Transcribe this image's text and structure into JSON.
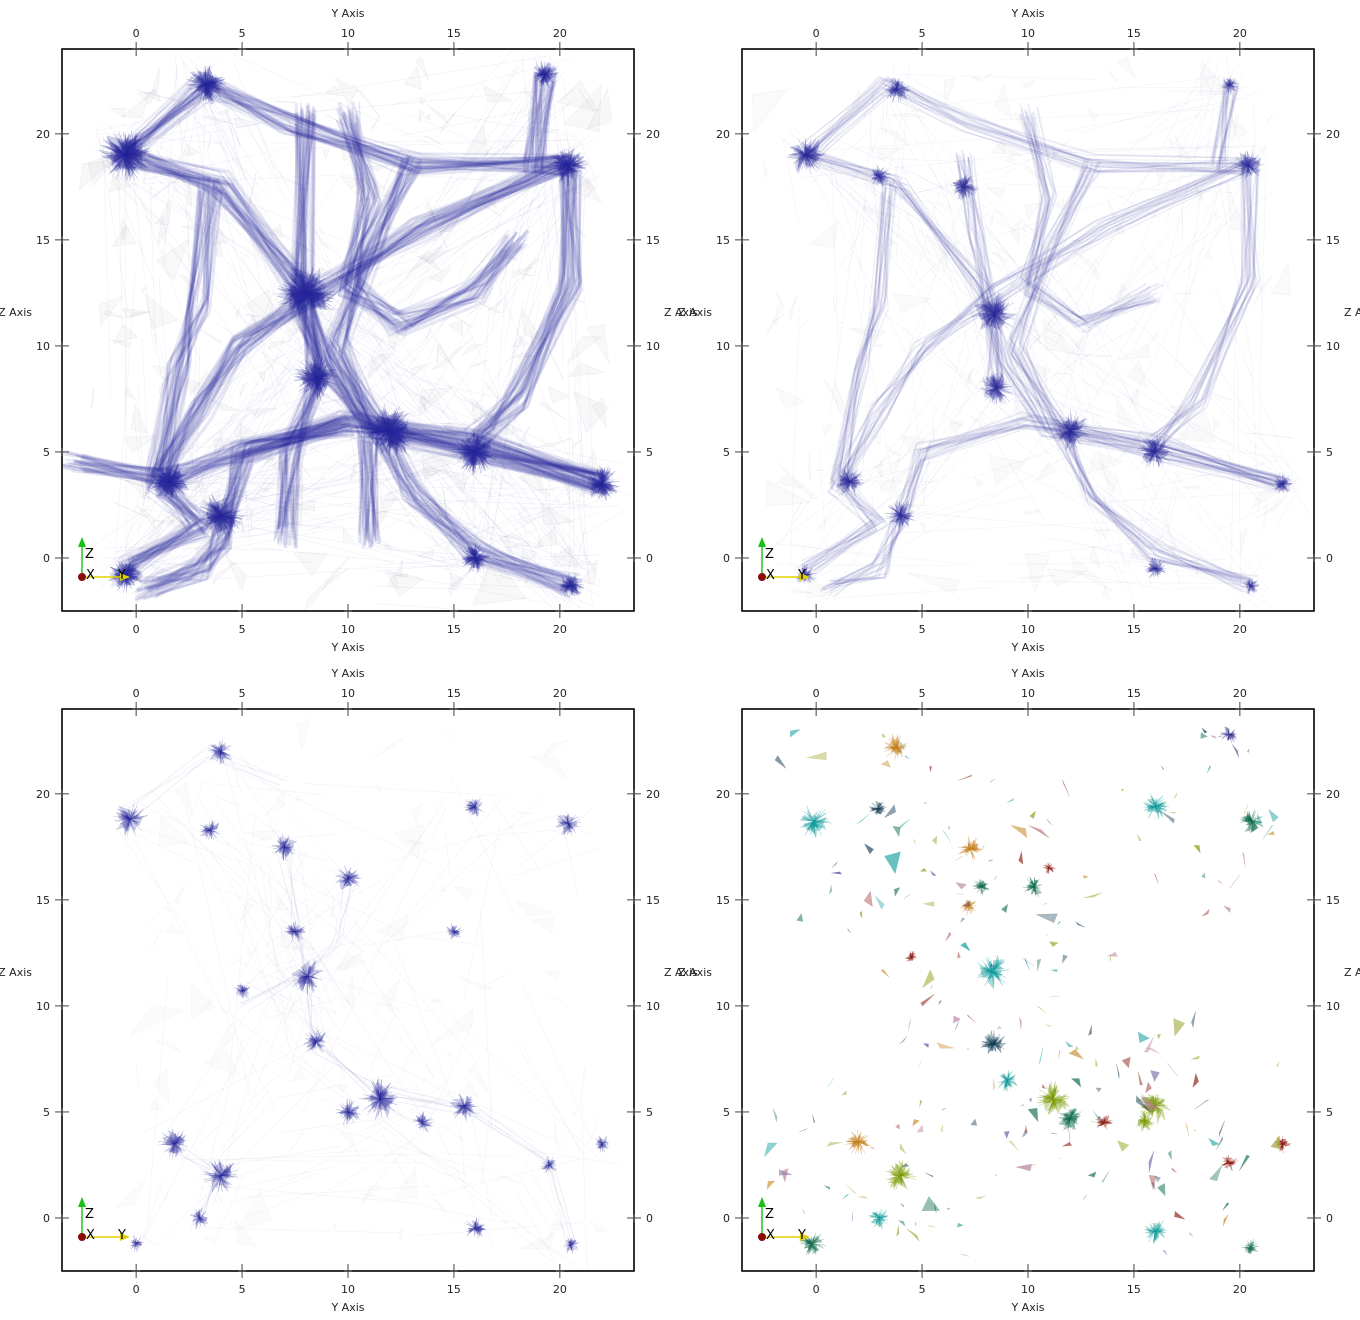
{
  "chart_data": [
    {
      "type": "scatter",
      "panel": "top-left",
      "title": "",
      "xlabel": "Y Axis",
      "ylabel": "Z Axis",
      "xlim": [
        -3.5,
        23.5
      ],
      "ylim": [
        -2.5,
        24
      ],
      "xticks": [
        "0",
        "5",
        "10",
        "15",
        "20"
      ],
      "yticks": [
        "0",
        "5",
        "10",
        "15",
        "20"
      ],
      "style": "dense",
      "color": "#2a2a9c",
      "filaments": [
        [
          [
            -0.5,
            19
          ],
          [
            3.3,
            22.3
          ],
          [
            7,
            20.5
          ],
          [
            13,
            18.6
          ],
          [
            20.4,
            18.5
          ]
        ],
        [
          [
            -0.5,
            19
          ],
          [
            4,
            17.7
          ],
          [
            7.7,
            12.8
          ],
          [
            9,
            9
          ],
          [
            11,
            6
          ],
          [
            16,
            5
          ],
          [
            22,
            3.5
          ]
        ],
        [
          [
            8,
            21
          ],
          [
            7.8,
            12
          ],
          [
            8.5,
            8.5
          ],
          [
            7.3,
            5
          ],
          [
            7,
            1
          ]
        ],
        [
          [
            20.4,
            18.5
          ],
          [
            13.5,
            15.5
          ],
          [
            8.5,
            12.5
          ],
          [
            5,
            10
          ],
          [
            3,
            7
          ],
          [
            1,
            3.5
          ],
          [
            3,
            1.5
          ],
          [
            -0.5,
            -0.5
          ]
        ],
        [
          [
            0.5,
            -1.5
          ],
          [
            3,
            -0.5
          ],
          [
            4,
            1
          ],
          [
            5,
            5
          ],
          [
            10,
            6.5
          ],
          [
            16,
            5.5
          ],
          [
            22,
            3.5
          ]
        ],
        [
          [
            20.5,
            -1.3
          ],
          [
            16,
            0.3
          ],
          [
            13,
            3
          ],
          [
            11.5,
            6
          ],
          [
            9.5,
            10
          ],
          [
            11,
            14.5
          ],
          [
            13,
            18.5
          ]
        ],
        [
          [
            -3,
            4.5
          ],
          [
            1.5,
            3.7
          ],
          [
            5,
            5
          ],
          [
            10,
            6.3
          ]
        ],
        [
          [
            20.5,
            18.5
          ],
          [
            20.5,
            13
          ],
          [
            18,
            7.5
          ],
          [
            16,
            5.5
          ]
        ],
        [
          [
            19.3,
            22.8
          ],
          [
            18.8,
            18.5
          ]
        ],
        [
          [
            10,
            21
          ],
          [
            11,
            17
          ],
          [
            10,
            12.8
          ],
          [
            12.5,
            11
          ],
          [
            16,
            12.5
          ],
          [
            18,
            15
          ]
        ],
        [
          [
            11,
            1
          ],
          [
            11,
            6
          ]
        ],
        [
          [
            3.5,
            17.5
          ],
          [
            3,
            12
          ],
          [
            2,
            9
          ],
          [
            1,
            3.5
          ]
        ]
      ],
      "clusters": [
        [
          -0.5,
          19,
          1.2
        ],
        [
          3.3,
          22.3,
          0.9
        ],
        [
          20.4,
          18.5,
          0.9
        ],
        [
          19.3,
          22.8,
          0.6
        ],
        [
          8,
          12.5,
          1.3
        ],
        [
          12,
          6,
          1.2
        ],
        [
          16,
          5,
          1
        ],
        [
          22,
          3.5,
          0.8
        ],
        [
          1.6,
          3.6,
          0.9
        ],
        [
          4,
          2,
          1
        ],
        [
          -0.5,
          -0.8,
          0.8
        ],
        [
          16,
          0,
          0.7
        ],
        [
          20.5,
          -1.3,
          0.6
        ],
        [
          8.5,
          8.5,
          1
        ]
      ]
    },
    {
      "type": "scatter",
      "panel": "top-right",
      "title": "",
      "xlabel": "Y Axis",
      "ylabel": "Z Axis",
      "xlim": [
        -3.5,
        23.5
      ],
      "ylim": [
        -2.5,
        24
      ],
      "xticks": [
        "0",
        "5",
        "10",
        "15",
        "20"
      ],
      "yticks": [
        "0",
        "5",
        "10",
        "15",
        "20"
      ],
      "style": "medium",
      "color": "#2a2a9c",
      "filaments": [
        [
          [
            -0.5,
            19
          ],
          [
            3.3,
            22.3
          ],
          [
            7,
            20.5
          ],
          [
            13,
            18.6
          ],
          [
            20.4,
            18.5
          ]
        ],
        [
          [
            -0.5,
            19
          ],
          [
            4,
            17.7
          ],
          [
            7.7,
            12.8
          ],
          [
            9,
            9
          ],
          [
            11,
            6
          ],
          [
            16,
            5
          ],
          [
            22,
            3.5
          ]
        ],
        [
          [
            7,
            19
          ],
          [
            7.5,
            15
          ],
          [
            8.3,
            11.5
          ],
          [
            8.5,
            8.5
          ]
        ],
        [
          [
            20.4,
            18.5
          ],
          [
            13.5,
            15.5
          ],
          [
            8.5,
            12.5
          ],
          [
            5,
            10
          ],
          [
            3,
            7
          ],
          [
            1,
            3.5
          ],
          [
            3,
            1.5
          ],
          [
            -0.5,
            -0.5
          ]
        ],
        [
          [
            0.5,
            -1.5
          ],
          [
            3,
            -0.5
          ],
          [
            4,
            2
          ],
          [
            5,
            5
          ],
          [
            10,
            6.5
          ],
          [
            16,
            5.5
          ],
          [
            22,
            3.5
          ]
        ],
        [
          [
            20.5,
            -1.3
          ],
          [
            16,
            0.3
          ],
          [
            13,
            3
          ],
          [
            11.5,
            6
          ],
          [
            9.5,
            10
          ],
          [
            11,
            14.5
          ],
          [
            13,
            18.5
          ]
        ],
        [
          [
            20.5,
            18.5
          ],
          [
            20.5,
            13
          ],
          [
            18,
            7.5
          ],
          [
            16,
            5.5
          ]
        ],
        [
          [
            10,
            21
          ],
          [
            11,
            17
          ],
          [
            10,
            12.8
          ],
          [
            12.5,
            11
          ],
          [
            16,
            12.5
          ]
        ],
        [
          [
            3.5,
            17.5
          ],
          [
            3,
            12
          ],
          [
            2,
            9
          ],
          [
            1,
            3.5
          ]
        ],
        [
          [
            19.5,
            22.3
          ],
          [
            19,
            18.5
          ]
        ]
      ],
      "clusters": [
        [
          -0.5,
          19,
          0.9
        ],
        [
          3.8,
          22.1,
          0.6
        ],
        [
          20.4,
          18.5,
          0.7
        ],
        [
          19.5,
          22.3,
          0.4
        ],
        [
          8.4,
          11.5,
          1
        ],
        [
          12,
          6,
          0.9
        ],
        [
          16,
          5,
          0.8
        ],
        [
          22,
          3.5,
          0.5
        ],
        [
          1.6,
          3.6,
          0.7
        ],
        [
          4,
          2,
          0.7
        ],
        [
          -0.5,
          -0.8,
          0.5
        ],
        [
          16,
          -0.5,
          0.5
        ],
        [
          20.5,
          -1.3,
          0.4
        ],
        [
          8.5,
          8,
          0.8
        ],
        [
          7,
          17.5,
          0.6
        ],
        [
          3,
          18,
          0.5
        ]
      ]
    },
    {
      "type": "scatter",
      "panel": "bottom-left",
      "title": "",
      "xlabel": "Y Axis",
      "ylabel": "Z Axis",
      "xlim": [
        -3.5,
        23.5
      ],
      "ylim": [
        -2.5,
        24
      ],
      "xticks": [
        "0",
        "5",
        "10",
        "15",
        "20"
      ],
      "yticks": [
        "0",
        "5",
        "10",
        "15",
        "20"
      ],
      "style": "sparse",
      "color": "#2a2a9c",
      "filaments": [
        [
          [
            -0.5,
            19
          ],
          [
            3.5,
            22
          ],
          [
            7,
            20.5
          ]
        ],
        [
          [
            7,
            17.5
          ],
          [
            7.5,
            13.5
          ],
          [
            8,
            11.5
          ],
          [
            8.5,
            8
          ]
        ],
        [
          [
            8.5,
            8
          ],
          [
            11,
            6
          ],
          [
            16,
            5
          ]
        ],
        [
          [
            1.5,
            3.5
          ],
          [
            4,
            2
          ],
          [
            3,
            0
          ]
        ],
        [
          [
            10,
            16
          ],
          [
            9.5,
            13
          ],
          [
            8,
            11.5
          ],
          [
            5,
            10
          ]
        ],
        [
          [
            16,
            5
          ],
          [
            19.5,
            2.5
          ],
          [
            20.5,
            -1.3
          ]
        ]
      ],
      "clusters": [
        [
          -0.3,
          18.8,
          0.8
        ],
        [
          4,
          22,
          0.6
        ],
        [
          3.5,
          18.3,
          0.5
        ],
        [
          7,
          17.5,
          0.6
        ],
        [
          10,
          16,
          0.6
        ],
        [
          7.5,
          13.5,
          0.5
        ],
        [
          8.1,
          11.4,
          0.8
        ],
        [
          5,
          10.7,
          0.4
        ],
        [
          8.5,
          8.3,
          0.6
        ],
        [
          11.5,
          5.6,
          0.9
        ],
        [
          10,
          5,
          0.6
        ],
        [
          15.5,
          5.3,
          0.7
        ],
        [
          13.5,
          4.5,
          0.5
        ],
        [
          1.8,
          3.5,
          0.7
        ],
        [
          4,
          2,
          0.8
        ],
        [
          3,
          0,
          0.5
        ],
        [
          16,
          -0.5,
          0.5
        ],
        [
          20.4,
          18.6,
          0.6
        ],
        [
          16,
          19.4,
          0.5
        ],
        [
          19.5,
          2.5,
          0.4
        ],
        [
          20.5,
          -1.3,
          0.4
        ],
        [
          0,
          -1.2,
          0.4
        ],
        [
          22,
          3.5,
          0.4
        ],
        [
          15,
          13.5,
          0.4
        ]
      ]
    },
    {
      "type": "scatter",
      "panel": "bottom-right",
      "title": "",
      "xlabel": "Y Axis",
      "ylabel": "Z Axis",
      "xlim": [
        -3.5,
        23.5
      ],
      "ylim": [
        -2.5,
        24
      ],
      "xticks": [
        "0",
        "5",
        "10",
        "15",
        "20"
      ],
      "yticks": [
        "0",
        "5",
        "10",
        "15",
        "20"
      ],
      "style": "clusters",
      "palette": [
        "#0e9a9a",
        "#c47d18",
        "#7a9a08",
        "#0f6b4a",
        "#123b55",
        "#8b1a10",
        "#b57b9a",
        "#9aa52a",
        "#35318a"
      ],
      "filaments": [],
      "clusters": [
        [
          -0.1,
          18.7,
          0.8,
          0
        ],
        [
          3.8,
          22.2,
          0.6,
          1
        ],
        [
          7.3,
          17.4,
          0.6,
          1
        ],
        [
          2.9,
          19.3,
          0.4,
          4
        ],
        [
          8.3,
          11.6,
          0.8,
          0
        ],
        [
          8.4,
          8.2,
          0.6,
          4
        ],
        [
          9,
          6.5,
          0.5,
          0
        ],
        [
          11.2,
          5.6,
          0.8,
          2
        ],
        [
          12,
          4.7,
          0.6,
          3
        ],
        [
          16,
          5.3,
          0.8,
          2
        ],
        [
          15.5,
          4.6,
          0.5,
          2
        ],
        [
          2,
          3.6,
          0.6,
          1
        ],
        [
          4,
          2,
          0.7,
          2
        ],
        [
          3,
          0,
          0.5,
          0
        ],
        [
          16,
          -0.6,
          0.6,
          0
        ],
        [
          20.6,
          18.7,
          0.6,
          3
        ],
        [
          16,
          19.4,
          0.6,
          0
        ],
        [
          19.5,
          22.8,
          0.4,
          8
        ],
        [
          22,
          3.5,
          0.4,
          5
        ],
        [
          19.5,
          2.6,
          0.4,
          5
        ],
        [
          20.5,
          -1.4,
          0.4,
          3
        ],
        [
          -0.2,
          -1.2,
          0.6,
          3
        ],
        [
          7.8,
          15.6,
          0.4,
          3
        ],
        [
          10.3,
          15.6,
          0.5,
          3
        ],
        [
          11,
          16.5,
          0.3,
          5
        ],
        [
          13.6,
          4.5,
          0.4,
          5
        ],
        [
          7.2,
          14.7,
          0.4,
          1
        ],
        [
          4.5,
          12.3,
          0.3,
          5
        ]
      ]
    }
  ]
}
